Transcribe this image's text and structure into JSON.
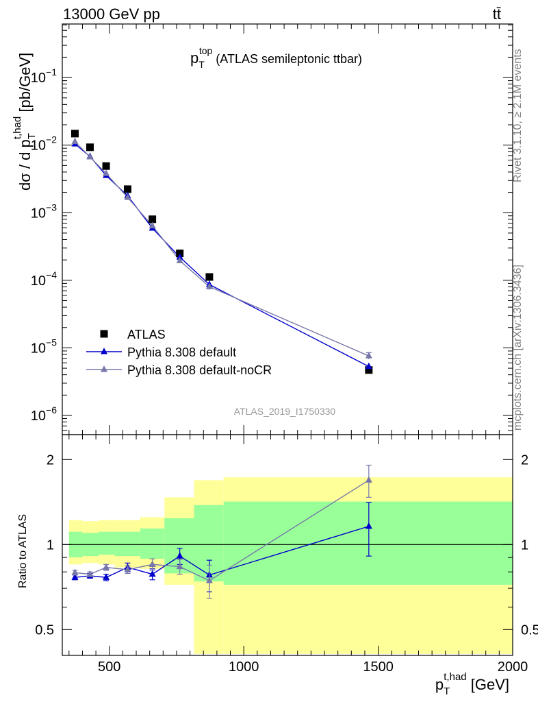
{
  "header": {
    "energy_label": "13000 GeV pp",
    "process_label": "tt̄"
  },
  "side_labels": {
    "rivet": "Rivet 3.1.10, ≥ 2.1M events",
    "mcplots": "mcplots.cern.ch [arXiv:1306.3436]"
  },
  "watermark": "ATLAS_2019_I1750330",
  "chart_data": [
    {
      "type": "scatter",
      "title": "p_T^top (ATLAS semileptonic ttbar)",
      "title_main": "p",
      "title_sub": "T",
      "title_sup": "top",
      "title_rest": " (ATLAS semileptonic ttbar)",
      "ylabel": "dσ / d p_T^{t,had} [pb/GeV]",
      "ylabel_a": "dσ / d p",
      "ylabel_sub": "T",
      "ylabel_sup": "t,had",
      "ylabel_b": " [pb/GeV]",
      "yscale": "log",
      "ylim": [
        5e-07,
        0.6
      ],
      "xlim": [
        325,
        2000
      ],
      "y_ticks": [
        {
          "value": 1e-06,
          "mantissa": "10",
          "exp": "−6"
        },
        {
          "value": 1e-05,
          "mantissa": "10",
          "exp": "−5"
        },
        {
          "value": 0.0001,
          "mantissa": "10",
          "exp": "−4"
        },
        {
          "value": 0.001,
          "mantissa": "10",
          "exp": "−3"
        },
        {
          "value": 0.01,
          "mantissa": "10",
          "exp": "−2"
        },
        {
          "value": 0.1,
          "mantissa": "10",
          "exp": "−1"
        }
      ],
      "legend_position": "lower-left",
      "x": [
        372,
        428,
        488,
        568,
        660,
        762,
        872,
        1465
      ],
      "series": [
        {
          "name": "ATLAS",
          "color": "#000000",
          "marker": "square",
          "values": [
            0.0148,
            0.0093,
            0.0049,
            0.00223,
            0.0008,
            0.00025,
            0.000112,
            4.7e-06
          ]
        },
        {
          "name": "Pythia 8.308 default",
          "color": "#0000cc",
          "marker": "triangle",
          "values": [
            0.0104,
            0.0068,
            0.00355,
            0.00178,
            0.00059,
            0.00022,
            8.65e-05,
            5.3e-06
          ],
          "yerr": [
            0.0003,
            0.0002,
            0.0001,
            6e-05,
            3e-05,
            1.5e-05,
            9e-06,
            1.2e-09
          ]
        },
        {
          "name": "Pythia 8.308 default-noCR",
          "color": "#7777aa",
          "marker": "triangle",
          "values": [
            0.0113,
            0.0067,
            0.0038,
            0.00168,
            0.00064,
            0.000195,
            8.05e-05,
            7.6e-06
          ],
          "yerr": [
            0.0003,
            0.0002,
            0.0001,
            6e-05,
            3e-05,
            1.2e-05,
            8e-06,
            1.2e-09
          ]
        }
      ]
    },
    {
      "type": "scatter",
      "ylabel": "Ratio to ATLAS",
      "xlabel": "p_T^{t,had} [GeV]",
      "xlabel_a": "p",
      "xlabel_sub": "T",
      "xlabel_sup": "t,had",
      "xlabel_b": " [GeV]",
      "yscale": "log",
      "ylim": [
        0.4,
        2.4
      ],
      "xlim": [
        325,
        2000
      ],
      "x_ticks": [
        500,
        1000,
        1500,
        2000
      ],
      "x_tick_labels": [
        "500",
        "1000",
        "1500",
        "2000"
      ],
      "y_ticks": [
        0.5,
        1,
        2
      ],
      "y_tick_labels": [
        "0.5",
        "1",
        "2"
      ],
      "reference_line": 1,
      "bin_edges": [
        350,
        400,
        460,
        520,
        615,
        705,
        815,
        925,
        2000
      ],
      "band_outer": {
        "color": "#ffff99",
        "low": [
          0.85,
          0.86,
          0.85,
          0.83,
          0.82,
          0.72,
          0.41,
          0.41
        ],
        "high": [
          1.22,
          1.21,
          1.22,
          1.22,
          1.25,
          1.47,
          1.69,
          1.73
        ]
      },
      "band_inner": {
        "color": "#99ff99",
        "low": [
          0.9,
          0.91,
          0.92,
          0.91,
          0.89,
          0.79,
          0.74,
          0.72
        ],
        "high": [
          1.11,
          1.1,
          1.11,
          1.11,
          1.14,
          1.24,
          1.38,
          1.42
        ]
      },
      "x": [
        372,
        428,
        488,
        568,
        660,
        762,
        872,
        1465
      ],
      "series": [
        {
          "name": "Pythia 8.308 default",
          "color": "#0000cc",
          "marker": "triangle",
          "values": [
            0.765,
            0.775,
            0.765,
            0.83,
            0.785,
            0.91,
            0.78,
            1.16
          ],
          "yerr": [
            0.015,
            0.015,
            0.02,
            0.03,
            0.035,
            0.06,
            0.1,
            0.25
          ]
        },
        {
          "name": "Pythia 8.308 default-noCR",
          "color": "#7777aa",
          "marker": "triangle",
          "values": [
            0.795,
            0.785,
            0.83,
            0.815,
            0.85,
            0.835,
            0.745,
            1.69
          ],
          "yerr": [
            0.015,
            0.015,
            0.02,
            0.025,
            0.04,
            0.05,
            0.1,
            0.22
          ]
        }
      ]
    }
  ]
}
